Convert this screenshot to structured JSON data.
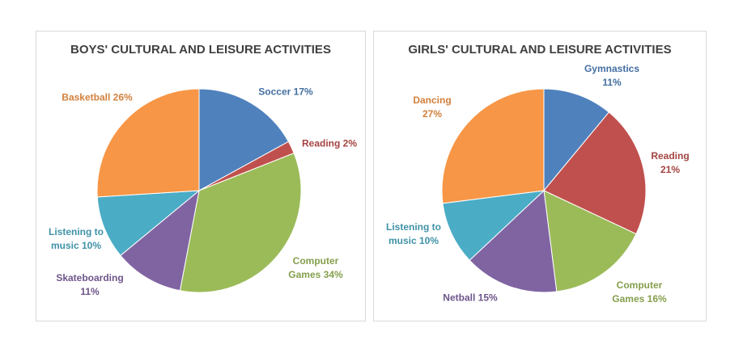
{
  "chart_data": [
    {
      "type": "pie",
      "title": "BOYS' CULTURAL AND LEISURE ACTIVITIES",
      "categories": [
        "Soccer",
        "Reading",
        "Computer Games",
        "Skateboarding",
        "Listening to music",
        "Basketball"
      ],
      "values": [
        17,
        2,
        34,
        11,
        10,
        26
      ],
      "value_labels": [
        "17%",
        "2%",
        "34%",
        "11%",
        "10%",
        "26%"
      ],
      "colors": [
        "#4f81bd",
        "#c0504d",
        "#9bbb59",
        "#8064a2",
        "#4bacc6",
        "#f79646"
      ]
    },
    {
      "type": "pie",
      "title": "GIRLS' CULTURAL AND LEISURE ACTIVITIES",
      "categories": [
        "Gymnastics",
        "Reading",
        "Computer Games",
        "Netball",
        "Listening to music",
        "Dancing"
      ],
      "values": [
        11,
        21,
        16,
        15,
        10,
        27
      ],
      "value_labels": [
        "11%",
        "21%",
        "16%",
        "15%",
        "10%",
        "27%"
      ],
      "colors": [
        "#4f81bd",
        "#c0504d",
        "#9bbb59",
        "#8064a2",
        "#4bacc6",
        "#f79646"
      ]
    }
  ]
}
